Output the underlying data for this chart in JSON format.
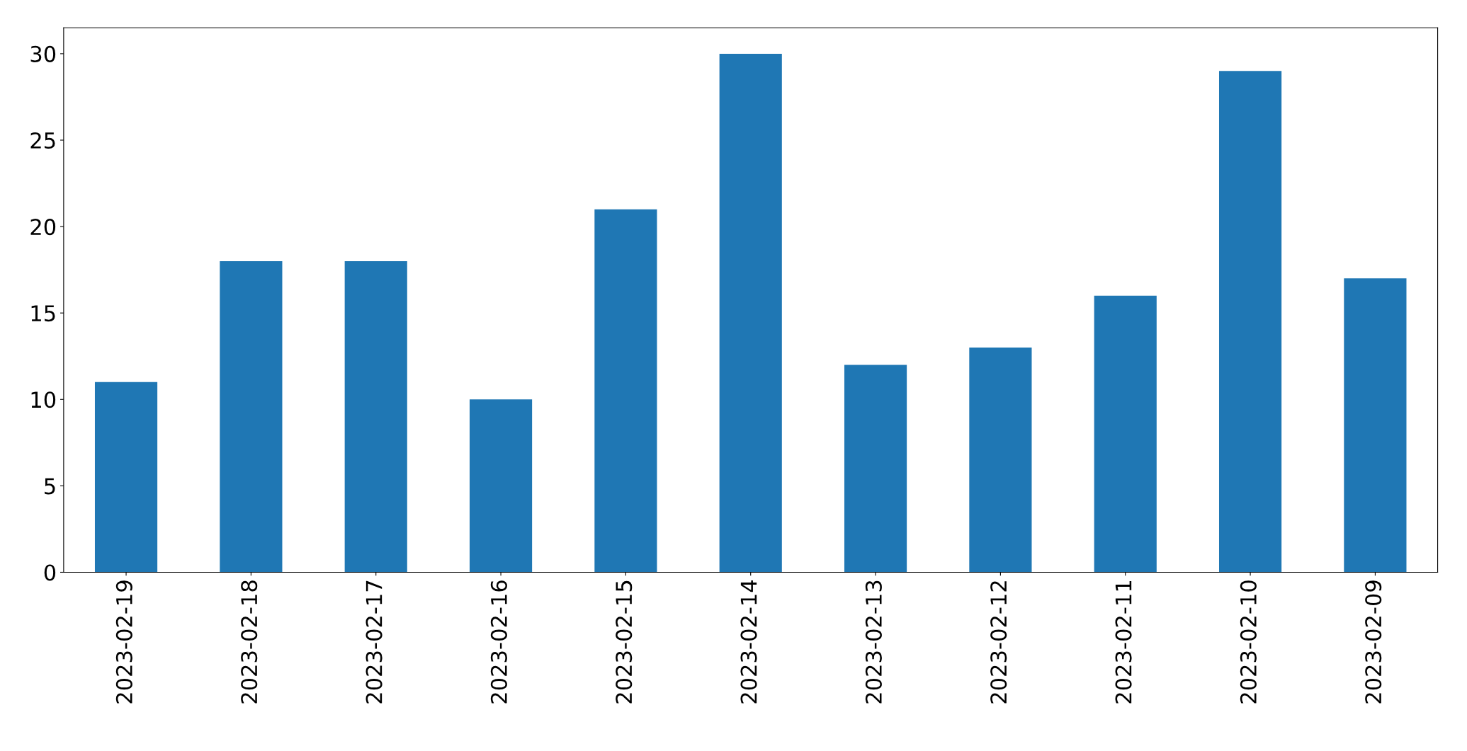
{
  "chart_data": {
    "type": "bar",
    "categories": [
      "2023-02-19",
      "2023-02-18",
      "2023-02-17",
      "2023-02-16",
      "2023-02-15",
      "2023-02-14",
      "2023-02-13",
      "2023-02-12",
      "2023-02-11",
      "2023-02-10",
      "2023-02-09"
    ],
    "values": [
      11,
      18,
      18,
      10,
      21,
      30,
      12,
      13,
      16,
      29,
      17
    ],
    "color": "#1f77b4",
    "ylim": [
      0,
      31.5
    ],
    "yticks": [
      0,
      5,
      10,
      15,
      20,
      25,
      30
    ],
    "grid": false,
    "legend": false
  }
}
